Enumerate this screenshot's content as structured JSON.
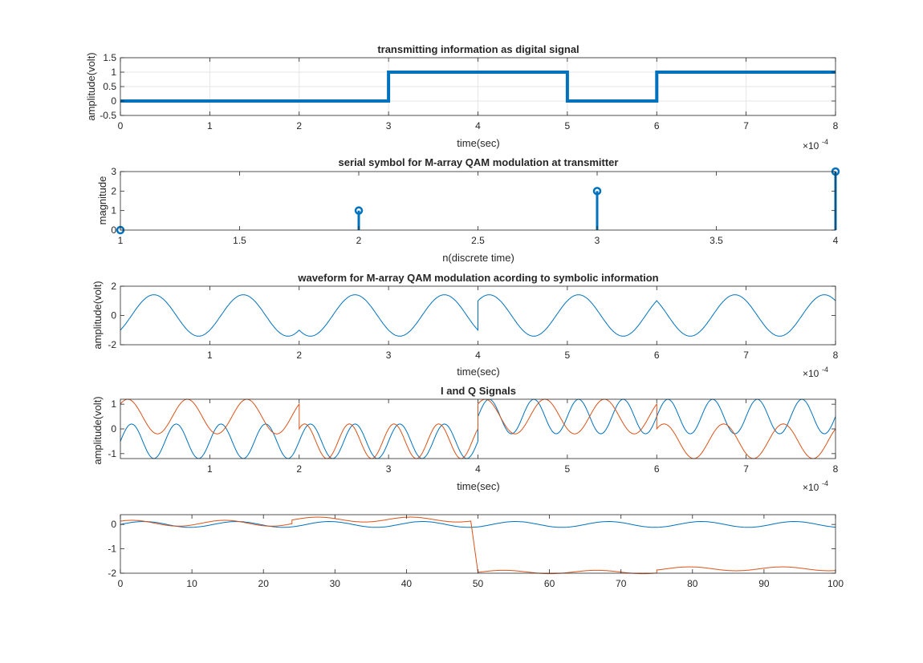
{
  "figure": {
    "background": "#ffffff"
  },
  "colors": {
    "series1": "#0072BD",
    "series2": "#D95319",
    "axis": "#262626",
    "grid": "#e6e6e6"
  },
  "chart_data": [
    {
      "id": "digital",
      "type": "line",
      "title": "transmitting information as digital signal",
      "xlabel": "time(sec)",
      "ylabel": "amplitude(volt)",
      "xlim": [
        0,
        8
      ],
      "ylim": [
        -0.5,
        1.5
      ],
      "xticks": [
        0,
        1,
        2,
        3,
        4,
        5,
        6,
        7,
        8
      ],
      "yticks": [
        -0.5,
        0,
        0.5,
        1,
        1.5
      ],
      "ytick_labels": [
        "-0.5",
        "0",
        "0.5",
        "1",
        "1.5"
      ],
      "x_exponent": "-4",
      "grid": true,
      "bits": [
        0,
        0,
        0,
        1,
        1,
        0,
        1,
        1
      ],
      "series": [
        {
          "x": [
            0,
            3,
            3,
            5,
            5,
            6,
            6,
            8
          ],
          "y": [
            0,
            0,
            1,
            1,
            0,
            0,
            1,
            1
          ],
          "color": "#0072BD",
          "width": 4
        }
      ]
    },
    {
      "id": "symbols",
      "type": "stem",
      "title": "serial symbol for M-array QAM modulation at transmitter",
      "xlabel": "n(discrete time)",
      "ylabel": "magnitude",
      "xlim": [
        1,
        4
      ],
      "ylim": [
        0,
        3
      ],
      "xticks": [
        1,
        1.5,
        2,
        2.5,
        3,
        3.5,
        4
      ],
      "yticks": [
        0,
        1,
        2,
        3
      ],
      "grid": false,
      "series": [
        {
          "x": [
            1,
            2,
            3,
            4
          ],
          "y": [
            0,
            1,
            2,
            3
          ],
          "color": "#0072BD"
        }
      ]
    },
    {
      "id": "waveform",
      "type": "line",
      "title": "waveform for M-array QAM modulation acording to symbolic information",
      "xlabel": "time(sec)",
      "ylabel": "amplitude(volt)",
      "xlim": [
        0,
        8
      ],
      "ylim": [
        -2,
        2
      ],
      "xticks": [
        1,
        2,
        3,
        4,
        5,
        6,
        7,
        8
      ],
      "yticks": [
        -2,
        0,
        2
      ],
      "x_exponent": "-4",
      "grid": false,
      "carrier_cycles_per_unit": 1,
      "segments": [
        {
          "x": [
            0,
            2
          ],
          "I": -1,
          "Q": -1
        },
        {
          "x": [
            2,
            4
          ],
          "I": -1,
          "Q": 1
        },
        {
          "x": [
            4,
            6
          ],
          "I": 1,
          "Q": -1
        },
        {
          "x": [
            6,
            8
          ],
          "I": 1,
          "Q": 1
        }
      ],
      "series": [
        {
          "name": "",
          "color": "#0072BD"
        }
      ]
    },
    {
      "id": "iq",
      "type": "line",
      "title": "I and Q Signals",
      "xlabel": "time(sec)",
      "ylabel": "amplitude(volt)",
      "xlim": [
        0,
        8
      ],
      "ylim": [
        -1.2,
        1.2
      ],
      "xticks": [
        1,
        2,
        3,
        4,
        5,
        6,
        7,
        8
      ],
      "yticks": [
        -1,
        0,
        1
      ],
      "x_exponent": "-4",
      "grid": false,
      "series": [
        {
          "color": "#0072BD",
          "segments": [
            {
              "x": [
                0,
                4
              ],
              "offset": -0.5,
              "amp": 0.7,
              "cycles_per_unit": 2
            },
            {
              "x": [
                4,
                8
              ],
              "offset": 0.5,
              "amp": 0.7,
              "cycles_per_unit": 2
            }
          ]
        },
        {
          "color": "#D95319",
          "segments": [
            {
              "x": [
                0,
                2
              ],
              "offset": 0.5,
              "amp": 0.7,
              "cycles_per_unit": 1.5
            },
            {
              "x": [
                2,
                4
              ],
              "offset": -0.5,
              "amp": 0.7,
              "cycles_per_unit": 2
            },
            {
              "x": [
                4,
                6
              ],
              "offset": 0.5,
              "amp": 0.7,
              "cycles_per_unit": 1.5
            },
            {
              "x": [
                6,
                8
              ],
              "offset": -0.5,
              "amp": 0.7,
              "cycles_per_unit": 1.5
            }
          ]
        }
      ]
    },
    {
      "id": "samples",
      "type": "line",
      "title": "",
      "xlabel": "",
      "ylabel": "",
      "xlim": [
        0,
        100
      ],
      "ylim": [
        -2,
        0.4
      ],
      "xticks": [
        0,
        10,
        20,
        30,
        40,
        50,
        60,
        70,
        80,
        90,
        100
      ],
      "yticks": [
        -2,
        -1,
        0
      ],
      "grid": false,
      "series": [
        {
          "color": "#0072BD",
          "segments": [
            {
              "x": [
                0,
                100
              ],
              "offset": 0,
              "amp": 0.12,
              "period": 13
            }
          ]
        },
        {
          "color": "#D95319",
          "segments": [
            {
              "x": [
                0,
                24
              ],
              "offset": 0.05,
              "amp": 0.12,
              "period": 13
            },
            {
              "x": [
                24,
                49
              ],
              "offset": 0.2,
              "amp": 0.1,
              "period": 13
            },
            {
              "x": [
                50,
                75
              ],
              "offset": -1.95,
              "amp": 0.07,
              "period": 13
            },
            {
              "x": [
                75,
                100
              ],
              "offset": -1.82,
              "amp": 0.08,
              "period": 13
            }
          ]
        }
      ]
    }
  ]
}
